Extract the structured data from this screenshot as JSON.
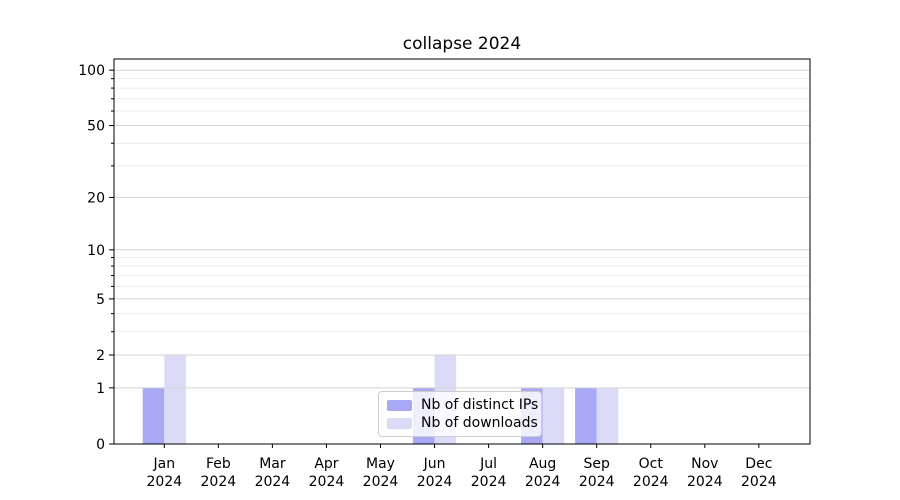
{
  "chart_data": {
    "type": "bar",
    "title": "collapse 2024",
    "categories": [
      "Jan",
      "Feb",
      "Mar",
      "Apr",
      "May",
      "Jun",
      "Jul",
      "Aug",
      "Sep",
      "Oct",
      "Nov",
      "Dec"
    ],
    "x_year_label": "2024",
    "series": [
      {
        "name": "Nb of distinct IPs",
        "color": "#a8a8f5",
        "values": [
          1,
          0,
          0,
          0,
          0,
          1,
          0,
          1,
          1,
          0,
          0,
          0
        ]
      },
      {
        "name": "Nb of downloads",
        "color": "#dbdbf8",
        "values": [
          2,
          0,
          0,
          0,
          0,
          2,
          0,
          1,
          1,
          0,
          0,
          0
        ]
      }
    ],
    "yscale": "log1p",
    "ylim": [
      0,
      115
    ],
    "yticks": [
      0,
      1,
      2,
      5,
      10,
      20,
      50,
      100
    ],
    "ytick_labels": [
      "0",
      "1",
      "2",
      "5",
      "10",
      "20",
      "50",
      "100"
    ],
    "minor_yticks": [
      3,
      4,
      6,
      7,
      8,
      9,
      30,
      40,
      60,
      70,
      80,
      90
    ],
    "grid": true,
    "grid_colors": {
      "major": "#d3d3d3",
      "minor": "#ececec"
    },
    "axis_color": "#000000",
    "legend": {
      "position": "lower center"
    }
  }
}
